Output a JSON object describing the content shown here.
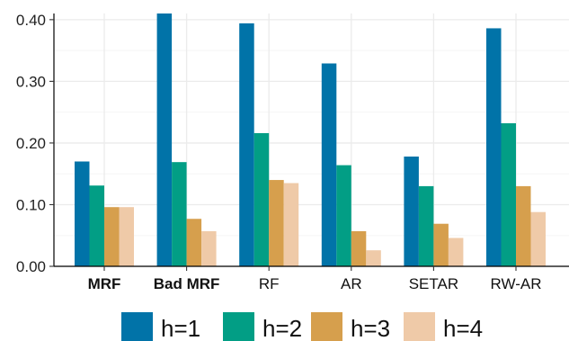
{
  "chart_data": {
    "type": "bar",
    "categories": [
      "MRF",
      "Bad MRF",
      "RF",
      "AR",
      "SETAR",
      "RW-AR"
    ],
    "bold_categories": [
      "MRF",
      "Bad MRF"
    ],
    "series": [
      {
        "name": "h=1",
        "color": "#0173a8",
        "values": [
          0.17,
          0.41,
          0.394,
          0.329,
          0.178,
          0.386
        ]
      },
      {
        "name": "h=2",
        "color": "#029e85",
        "values": [
          0.131,
          0.169,
          0.216,
          0.164,
          0.13,
          0.232
        ]
      },
      {
        "name": "h=3",
        "color": "#d69f4d",
        "values": [
          0.096,
          0.077,
          0.14,
          0.057,
          0.069,
          0.13
        ]
      },
      {
        "name": "h=4",
        "color": "#efcaa8",
        "values": [
          0.096,
          0.057,
          0.135,
          0.026,
          0.046,
          0.088
        ]
      }
    ],
    "y_ticks": [
      "0.00",
      "0.10",
      "0.20",
      "0.30",
      "0.40"
    ],
    "ylim": [
      0,
      0.41
    ],
    "grid": true,
    "legend_position": "bottom",
    "title": "",
    "xlabel": "",
    "ylabel": ""
  }
}
